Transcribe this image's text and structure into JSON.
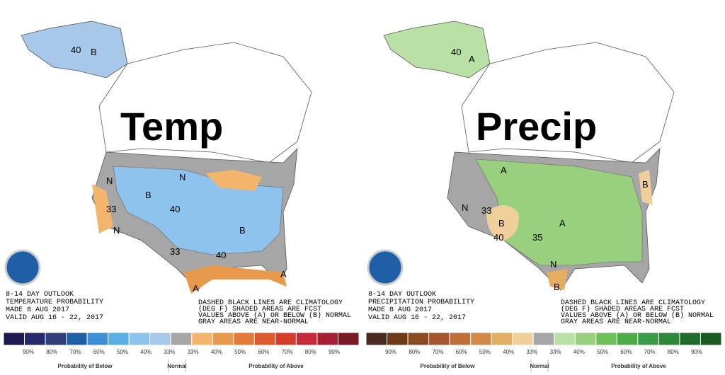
{
  "panels": [
    {
      "overlay_title": "Temp",
      "outlook": [
        "8-14 DAY OUTLOOK",
        "TEMPERATURE PROBABILITY",
        "MADE  8 AUG 2017",
        "VALID  AUG 16 - 22, 2017"
      ],
      "notes": [
        "DASHED BLACK LINES ARE CLIMATOLOGY",
        "(DEG F) SHADED AREAS ARE FCST",
        "VALUES ABOVE (A) OR BELOW (B) NORMAL",
        "GRAY AREAS ARE NEAR-NORMAL"
      ],
      "map_labels": [
        "B",
        "40",
        "B",
        "B",
        "N",
        "N",
        "N",
        "40",
        "33",
        "A",
        "A",
        "33",
        "40"
      ],
      "legend": {
        "colors": [
          "#1c1a4e",
          "#27296c",
          "#2e3f7a",
          "#1f5fa6",
          "#3c8fd4",
          "#5aaee6",
          "#8ec3ee",
          "#a7c8e8",
          "#a6a6a6",
          "#f2b56b",
          "#e89a4c",
          "#e27a3a",
          "#dc5a2c",
          "#d63c2c",
          "#c72a3a",
          "#a61f35",
          "#7a1c28"
        ],
        "labels": [
          "90%",
          "80%",
          "70%",
          "60%",
          "50%",
          "40%",
          "33%",
          "33%",
          "40%",
          "50%",
          "60%",
          "70%",
          "80%",
          "90%"
        ],
        "captions": [
          "Probability of Below",
          "Normal",
          "Probability of Above"
        ]
      }
    },
    {
      "overlay_title": "Precip",
      "outlook": [
        "8-14 DAY OUTLOOK",
        "PRECIPITATION PROBABILITY",
        "MADE  8 AUG 2017",
        "VALID  AUG 16 - 22, 2017"
      ],
      "notes": [
        "DASHED BLACK LINES ARE CLIMATOLOGY",
        "(DEG F) SHADED AREAS ARE FCST",
        "VALUES ABOVE (A) OR BELOW (B) NORMAL",
        "GRAY AREAS ARE NEAR-NORMAL"
      ],
      "map_labels": [
        "A",
        "40",
        "A",
        "B",
        "A",
        "N",
        "N",
        "B",
        "B",
        "33",
        "35",
        "40"
      ],
      "legend": {
        "colors": [
          "#4a2a1e",
          "#6e3a1a",
          "#8a4a22",
          "#a5562e",
          "#bf6f3a",
          "#d18a4a",
          "#e3ad62",
          "#f0d09a",
          "#a6a6a6",
          "#b9e0a5",
          "#98d07e",
          "#6fbf5a",
          "#4cad48",
          "#3d9a4a",
          "#2e8a3a",
          "#1f6e2e",
          "#1b5a24"
        ],
        "labels": [
          "90%",
          "80%",
          "70%",
          "60%",
          "50%",
          "40%",
          "33%",
          "33%",
          "40%",
          "50%",
          "60%",
          "70%",
          "80%",
          "90%"
        ],
        "captions": [
          "Probability of Below",
          "Normal",
          "Probability of Above"
        ]
      }
    }
  ]
}
